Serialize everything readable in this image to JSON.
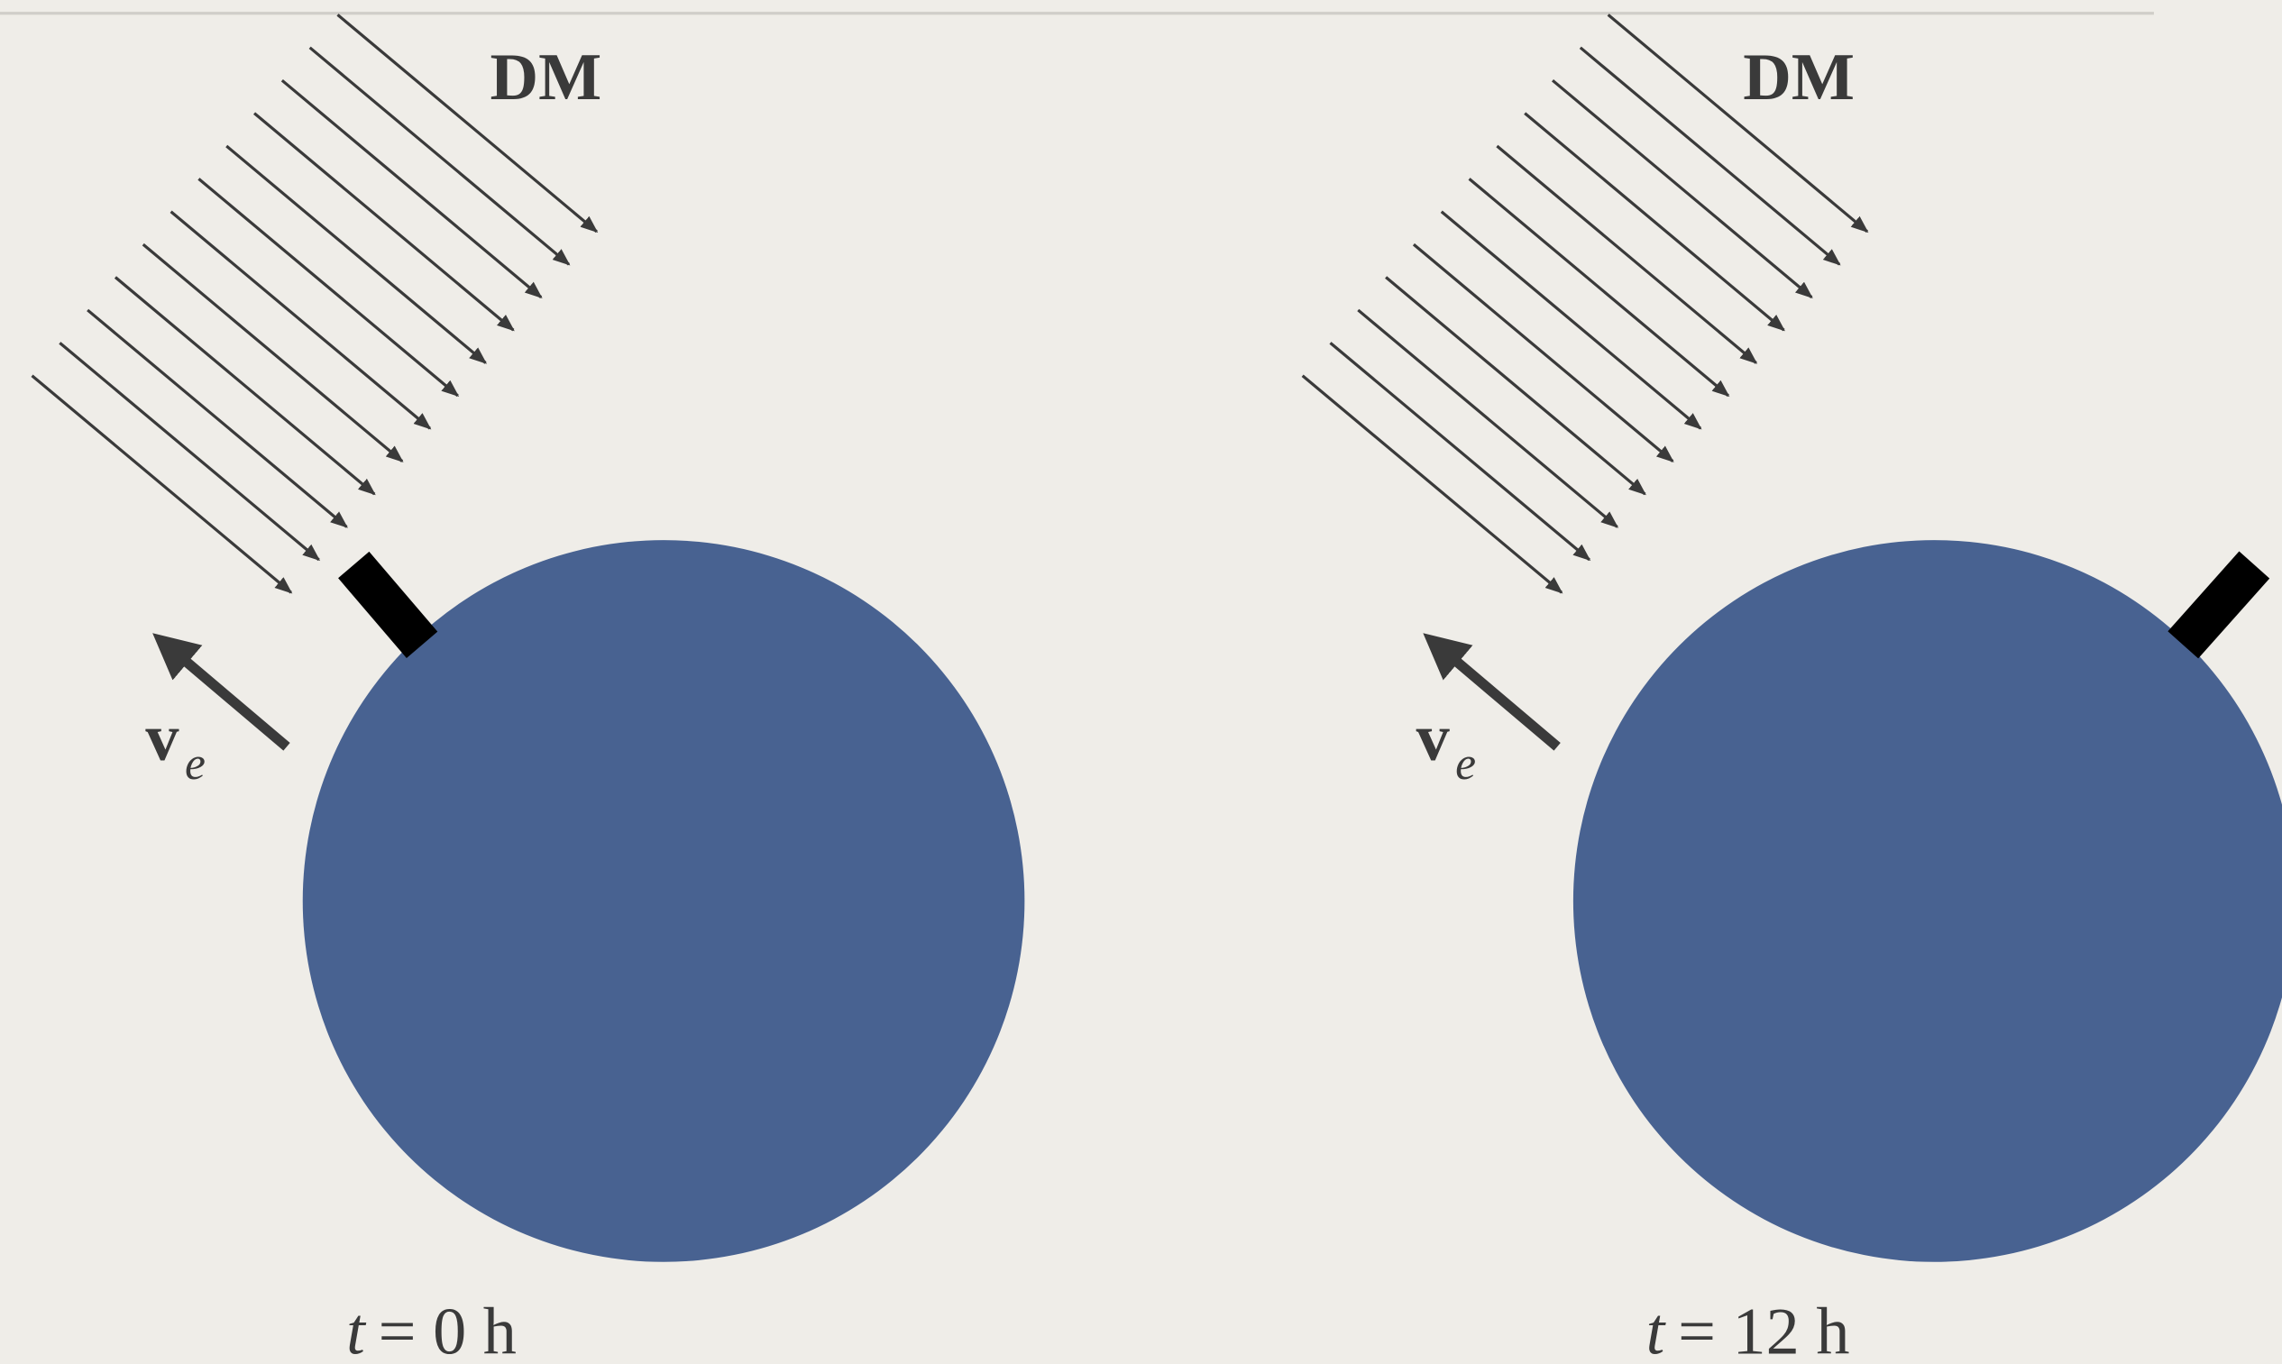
{
  "panels": [
    {
      "label": "DM",
      "velocity": "v",
      "velocity_sub": "e",
      "time_var": "t",
      "time_value": "= 0 h"
    },
    {
      "label": "DM",
      "velocity": "v",
      "velocity_sub": "e",
      "time_var": "t",
      "time_value": "= 12 h"
    }
  ]
}
